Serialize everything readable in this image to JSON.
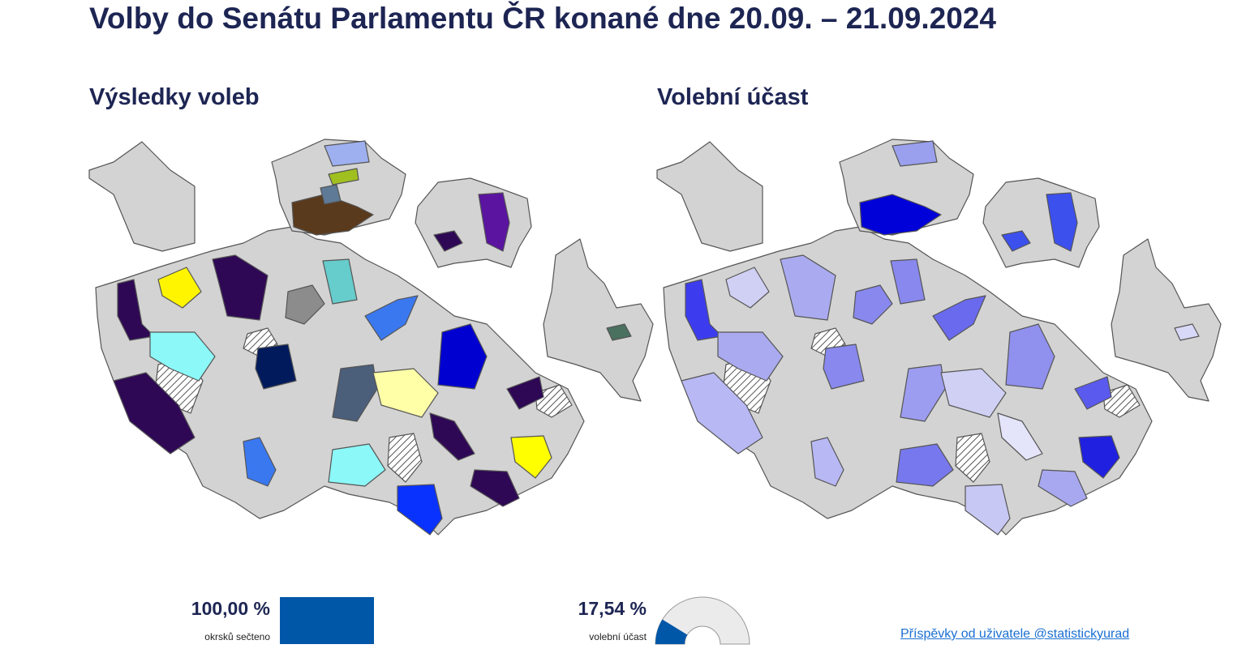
{
  "header": {
    "title": "Volby do Senátu Parlamentu ČR konané dne 20.09. – 21.09.2024"
  },
  "sections": [
    {
      "heading": "Výsledky voleb"
    },
    {
      "heading": "Volební účast"
    }
  ],
  "counted": {
    "value": 100,
    "label": "100,00 %",
    "caption": "okrsků sečteno"
  },
  "turnout": {
    "value": 17.54,
    "label": "17,54 %",
    "caption": "volební účast"
  },
  "footer": {
    "link": "Příspěvky od uživatele @statistickyurad"
  }
}
